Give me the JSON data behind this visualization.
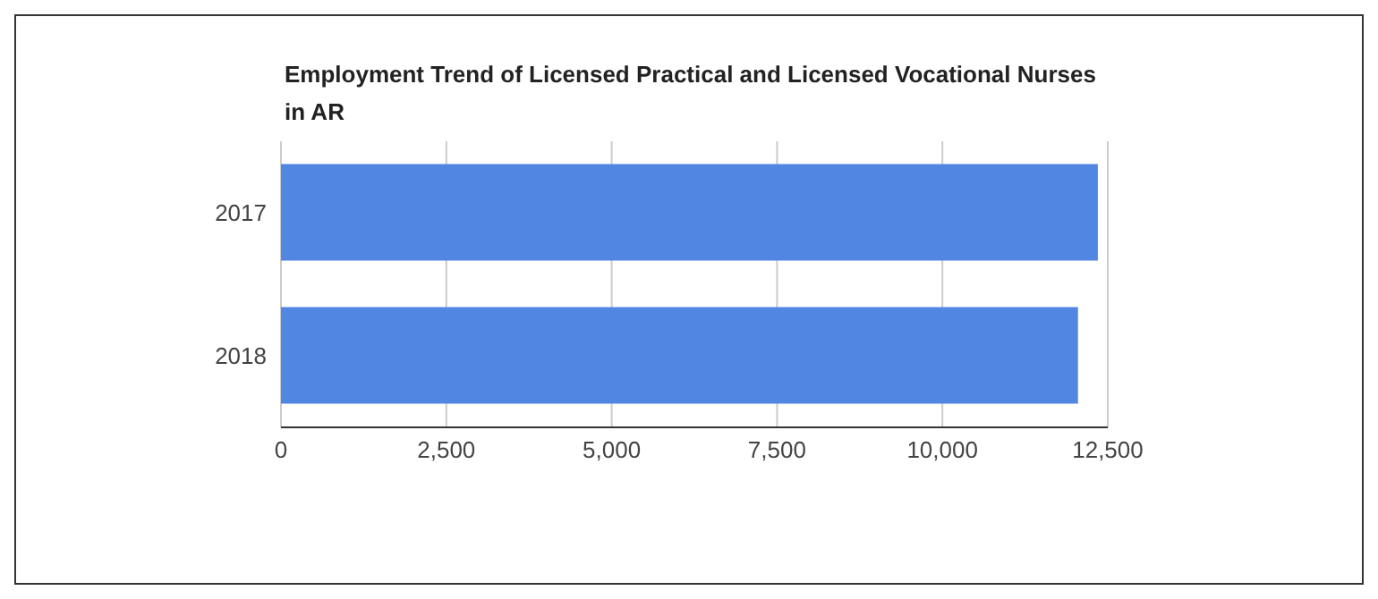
{
  "chart_data": {
    "type": "bar",
    "orientation": "horizontal",
    "title": "Employment Trend of Licensed Practical and Licensed Vocational Nurses in AR",
    "categories": [
      "2017",
      "2018"
    ],
    "values": [
      12350,
      12050
    ],
    "color": "#5286e3",
    "xlim": [
      0,
      12500
    ],
    "xticks": [
      0,
      {
        "value": 2500,
        "label": "2,500"
      },
      {
        "value": 5000,
        "label": "5,000"
      },
      {
        "value": 7500,
        "label": "7,500"
      },
      {
        "value": 10000,
        "label": "10,000"
      },
      {
        "value": 12500,
        "label": "12,500"
      }
    ],
    "grid": "x"
  }
}
